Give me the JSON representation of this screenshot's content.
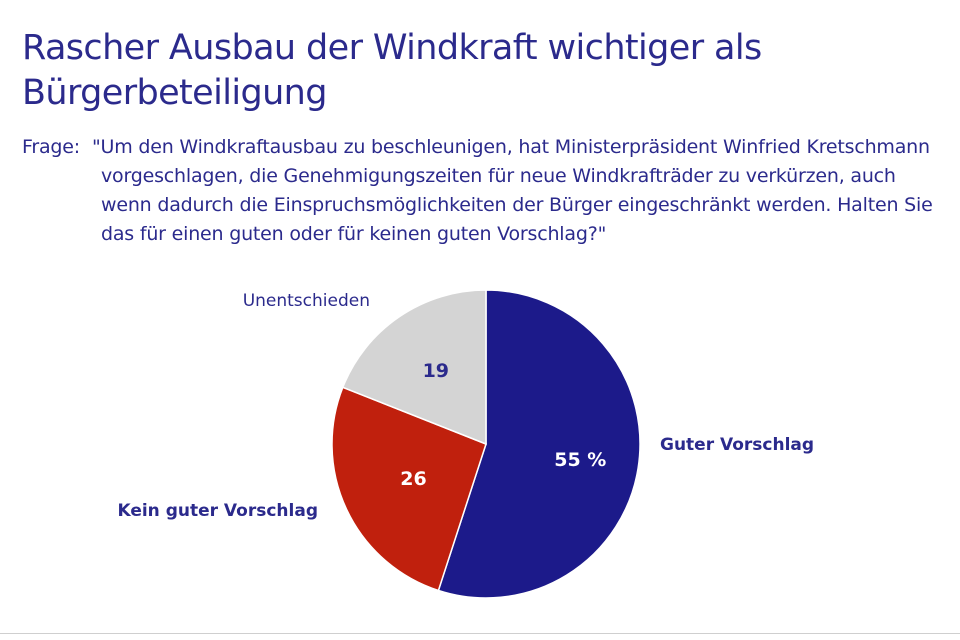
{
  "title": "Rascher Ausbau der Windkraft wichtiger als Bürgerbeteiligung",
  "question": {
    "label": "Frage:",
    "text": "\"Um den Windkraftausbau zu beschleunigen, hat Ministerpräsident Winfried Kretschmann vorgeschlagen, die Genehmigungszeiten für neue Windkrafträder zu verkürzen, auch wenn dadurch die Einspruchsmöglichkeiten der Bürger eingeschränkt werden. Halten Sie das für einen guten oder für keinen guten Vorschlag?\""
  },
  "chart_data": {
    "type": "pie",
    "unit": "%",
    "slices": [
      {
        "category": "Guter Vorschlag",
        "value": 55,
        "value_label": "55 %",
        "color": "#1c1a8a",
        "label_color": "#ffffff"
      },
      {
        "category": "Kein guter Vorschlag",
        "value": 26,
        "value_label": "26",
        "color": "#c0200d",
        "label_color": "#ffffff"
      },
      {
        "category": "Unentschieden",
        "value": 19,
        "value_label": "19",
        "color": "#d4d4d4",
        "label_color": "#2b2a8c"
      }
    ]
  }
}
